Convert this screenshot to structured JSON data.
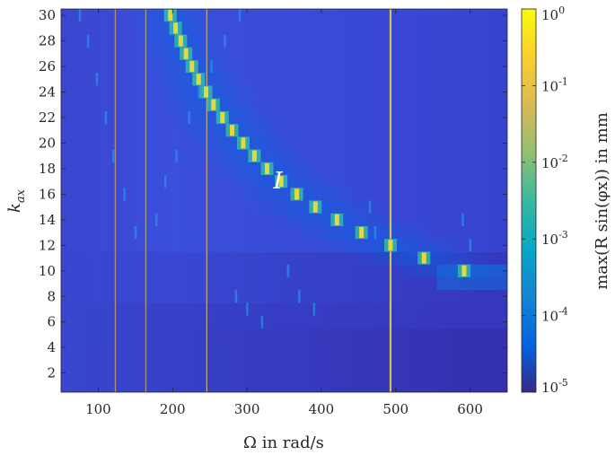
{
  "chart_data": {
    "type": "heatmap",
    "title": "",
    "xlabel": "Ω in rad/s",
    "ylabel_main": "k",
    "ylabel_sub": "ax",
    "x_range": [
      50,
      650
    ],
    "y_range": [
      0.5,
      30.5
    ],
    "x_ticks": [
      100,
      200,
      300,
      400,
      500,
      600
    ],
    "x_tick_labels": [
      "100",
      "200",
      "300",
      "400",
      "500",
      "600"
    ],
    "y_ticks": [
      2,
      4,
      6,
      8,
      10,
      12,
      14,
      16,
      18,
      20,
      22,
      24,
      26,
      28,
      30
    ],
    "y_tick_labels": [
      "2",
      "4",
      "6",
      "8",
      "10",
      "12",
      "14",
      "16",
      "18",
      "20",
      "22",
      "24",
      "26",
      "28",
      "30"
    ],
    "k_count": 30,
    "colorbar": {
      "label": "max(R sin(φx)) in mm",
      "scale": "log",
      "range": [
        1e-05,
        1
      ],
      "ticks": [
        1e-05,
        0.0001,
        0.001,
        0.01,
        0.1,
        1
      ],
      "tick_labels": [
        {
          "base": "10",
          "exp": "-5"
        },
        {
          "base": "10",
          "exp": "-4"
        },
        {
          "base": "10",
          "exp": "-3"
        },
        {
          "base": "10",
          "exp": "-2"
        },
        {
          "base": "10",
          "exp": "-1"
        },
        {
          "base": "10",
          "exp": "0"
        }
      ],
      "colormap": "parula"
    },
    "resonance_curve": {
      "k": [
        30,
        29,
        28,
        27,
        26,
        25,
        24,
        23,
        22,
        21,
        20,
        19,
        18,
        17,
        16,
        15,
        14,
        13,
        12,
        11,
        10
      ],
      "omega": [
        197,
        204,
        211,
        218,
        226,
        235,
        245,
        255,
        267,
        280,
        295,
        310,
        327,
        346,
        367,
        392,
        421,
        454,
        493,
        538,
        592
      ]
    },
    "vertical_lines": [
      {
        "omega": 123,
        "color": "#c8906a"
      },
      {
        "omega": 164,
        "color": "#b0a070"
      },
      {
        "omega": 246,
        "color": "#c8b070"
      },
      {
        "omega": 493,
        "color": "#e8d040"
      }
    ],
    "annotation": {
      "text": "I",
      "omega": 390,
      "k": 17
    }
  }
}
